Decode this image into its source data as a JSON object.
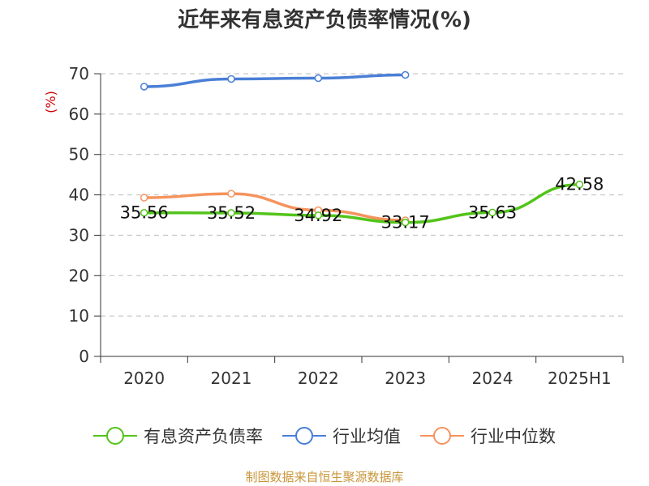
{
  "page": {
    "title": "近年来有息资产负债率情况(%)",
    "source": "制图数据来自恒生聚源数据库"
  },
  "chart_data": {
    "type": "line",
    "title": "近年来有息资产负债率情况(%)",
    "ylabel": "(%)",
    "xlabel": "",
    "categories": [
      "2020",
      "2021",
      "2022",
      "2023",
      "2024",
      "2025H1"
    ],
    "ylim": [
      0,
      70
    ],
    "yticks": [
      0,
      10,
      20,
      30,
      40,
      50,
      60,
      70
    ],
    "grid": true,
    "legend_position": "bottom",
    "series": [
      {
        "name": "有息资产负债率",
        "color": "#52c41a",
        "values": [
          35.56,
          35.52,
          34.92,
          33.17,
          35.63,
          42.58
        ],
        "data_labels": [
          "35.56",
          "35.52",
          "34.92",
          "33.17",
          "35.63",
          "42.58"
        ]
      },
      {
        "name": "行业均值",
        "color": "#4a7fd6",
        "values": [
          66.8,
          68.7,
          68.9,
          69.7,
          null,
          null
        ]
      },
      {
        "name": "行业中位数",
        "color": "#f5935d",
        "values": [
          39.3,
          40.3,
          36.2,
          33.7,
          null,
          null
        ]
      }
    ]
  }
}
